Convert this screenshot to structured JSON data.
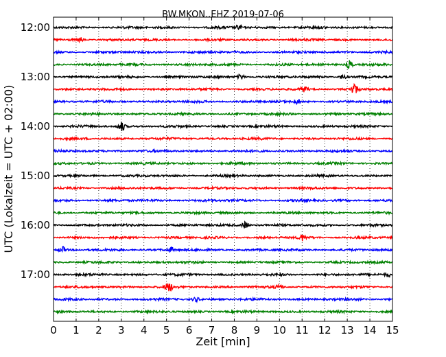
{
  "chart_data": {
    "type": "line",
    "title": "BW.MKON..EHZ 2019-07-06",
    "xlabel": "Zeit  [min]",
    "ylabel": "UTC (Lokalzeit = UTC + 02:00)",
    "xlim": [
      0,
      15
    ],
    "x_ticks": [
      "0",
      "1",
      "2",
      "3",
      "4",
      "5",
      "6",
      "7",
      "8",
      "9",
      "10",
      "11",
      "12",
      "13",
      "14",
      "15"
    ],
    "y_tick_labels": [
      "12:00",
      "13:00",
      "14:00",
      "15:00",
      "16:00",
      "17:00"
    ],
    "grid": "vertical dotted",
    "trace_colors": [
      "#000000",
      "#ff0000",
      "#0000ff",
      "#008000"
    ],
    "traces": [
      {
        "start": "12:00",
        "color": "#000000",
        "events": [
          {
            "min": 8.2,
            "amp": 3
          }
        ]
      },
      {
        "start": "12:15",
        "color": "#ff0000",
        "events": [
          {
            "min": 1.2,
            "amp": 3
          }
        ]
      },
      {
        "start": "12:30",
        "color": "#0000ff",
        "events": []
      },
      {
        "start": "12:45",
        "color": "#008000",
        "events": [
          {
            "min": 13.1,
            "amp": 6
          }
        ]
      },
      {
        "start": "13:00",
        "color": "#000000",
        "events": [
          {
            "min": 8.3,
            "amp": 4
          },
          {
            "min": 12.8,
            "amp": 3
          }
        ]
      },
      {
        "start": "13:15",
        "color": "#ff0000",
        "events": [
          {
            "min": 11.1,
            "amp": 3
          },
          {
            "min": 13.3,
            "amp": 7
          }
        ]
      },
      {
        "start": "13:30",
        "color": "#0000ff",
        "events": [
          {
            "min": 10.8,
            "amp": 3
          }
        ]
      },
      {
        "start": "13:45",
        "color": "#008000",
        "events": []
      },
      {
        "start": "14:00",
        "color": "#000000",
        "events": [
          {
            "min": 3.0,
            "amp": 7
          }
        ]
      },
      {
        "start": "14:15",
        "color": "#ff0000",
        "events": []
      },
      {
        "start": "14:30",
        "color": "#0000ff",
        "events": []
      },
      {
        "start": "14:45",
        "color": "#008000",
        "events": []
      },
      {
        "start": "15:00",
        "color": "#000000",
        "events": []
      },
      {
        "start": "15:15",
        "color": "#ff0000",
        "events": []
      },
      {
        "start": "15:30",
        "color": "#0000ff",
        "events": []
      },
      {
        "start": "15:45",
        "color": "#008000",
        "events": []
      },
      {
        "start": "16:00",
        "color": "#000000",
        "events": [
          {
            "min": 8.5,
            "amp": 5
          }
        ]
      },
      {
        "start": "16:15",
        "color": "#ff0000",
        "events": [
          {
            "min": 11.0,
            "amp": 4
          }
        ]
      },
      {
        "start": "16:30",
        "color": "#0000ff",
        "events": [
          {
            "min": 0.4,
            "amp": 4
          },
          {
            "min": 5.2,
            "amp": 3
          }
        ]
      },
      {
        "start": "16:45",
        "color": "#008000",
        "events": []
      },
      {
        "start": "17:00",
        "color": "#000000",
        "events": [
          {
            "min": 14.8,
            "amp": 3
          }
        ]
      },
      {
        "start": "17:15",
        "color": "#ff0000",
        "events": [
          {
            "min": 5.1,
            "amp": 6
          },
          {
            "min": 10.0,
            "amp": 3
          }
        ]
      },
      {
        "start": "17:30",
        "color": "#0000ff",
        "events": [
          {
            "min": 6.3,
            "amp": 3
          }
        ]
      },
      {
        "start": "17:45",
        "color": "#008000",
        "events": []
      }
    ]
  }
}
